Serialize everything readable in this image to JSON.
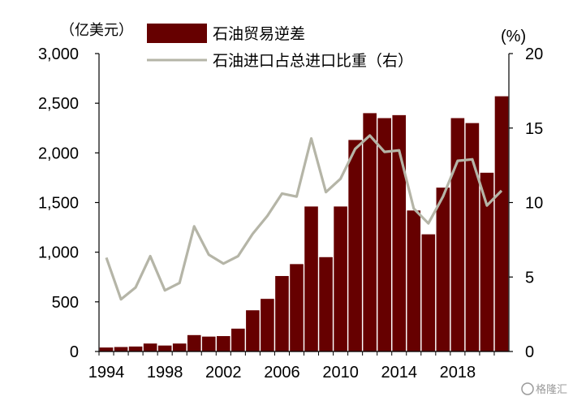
{
  "chart_data": {
    "type": "bar",
    "left_unit_label": "（亿美元）",
    "right_unit_label": "(%)",
    "x": [
      1994,
      1995,
      1996,
      1997,
      1998,
      1999,
      2000,
      2001,
      2002,
      2003,
      2004,
      2005,
      2006,
      2007,
      2008,
      2009,
      2010,
      2011,
      2012,
      2013,
      2014,
      2015,
      2016,
      2017,
      2018,
      2019,
      2020,
      2021
    ],
    "x_tick_labels": [
      "1994",
      "1998",
      "2002",
      "2006",
      "2010",
      "2014",
      "2018"
    ],
    "y_left": {
      "ylim": [
        0,
        3000
      ],
      "ticks": [
        "0",
        "500",
        "1,000",
        "1,500",
        "2,000",
        "2,500",
        "3,000"
      ]
    },
    "y_right": {
      "ylim": [
        0,
        20
      ],
      "ticks": [
        "0",
        "5",
        "10",
        "15",
        "20"
      ]
    },
    "series": [
      {
        "name": "石油贸易逆差",
        "type": "bar",
        "axis": "left",
        "color": "#660000",
        "values": [
          40,
          45,
          50,
          80,
          60,
          80,
          165,
          150,
          155,
          230,
          415,
          530,
          760,
          880,
          1460,
          950,
          1460,
          2130,
          2400,
          2350,
          2380,
          1420,
          1180,
          1650,
          2350,
          2300,
          1800,
          2570
        ]
      },
      {
        "name": "石油进口占总进口比重（右）",
        "type": "line",
        "axis": "right",
        "color": "#b5b5a7",
        "values": [
          6.3,
          3.5,
          4.3,
          6.4,
          4.1,
          4.6,
          8.4,
          6.5,
          5.9,
          6.4,
          7.9,
          9.1,
          10.6,
          10.4,
          14.3,
          10.7,
          11.6,
          13.6,
          14.5,
          13.4,
          13.5,
          9.6,
          8.6,
          10.4,
          12.8,
          12.9,
          9.8,
          10.8
        ]
      }
    ],
    "legend_position": "top"
  },
  "watermark": {
    "text": "格隆汇"
  }
}
